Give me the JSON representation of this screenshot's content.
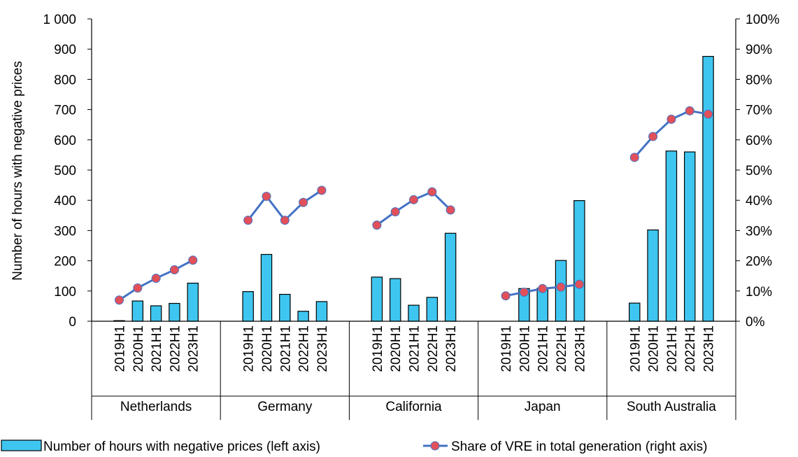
{
  "chart_data": {
    "type": "bar+line",
    "title": "",
    "groups": [
      "Netherlands",
      "Germany",
      "California",
      "Japan",
      "South Australia"
    ],
    "periods": [
      "2019H1",
      "2020H1",
      "2021H1",
      "2022H1",
      "2023H1"
    ],
    "ylabel_left": "Number of hours with negative prices",
    "ylim_left": [
      0,
      1000
    ],
    "yticks_left": [
      "0",
      "100",
      "200",
      "300",
      "400",
      "500",
      "600",
      "700",
      "800",
      "900",
      "1 000"
    ],
    "ylim_right": [
      0,
      100
    ],
    "yticks_right": [
      "0%",
      "10%",
      "20%",
      "30%",
      "40%",
      "50%",
      "60%",
      "70%",
      "80%",
      "90%",
      "100%"
    ],
    "grid": false,
    "legend_position": "bottom",
    "series": [
      {
        "name": "Number of hours with negative prices (left axis)",
        "kind": "bar",
        "axis": "left",
        "color": "#3EC6F0",
        "values": [
          [
            2,
            67,
            51,
            59,
            126
          ],
          [
            98,
            221,
            89,
            33,
            65
          ],
          [
            146,
            141,
            53,
            79,
            291
          ],
          [
            null,
            108,
            109,
            201,
            399
          ],
          [
            60,
            302,
            563,
            560,
            876
          ]
        ]
      },
      {
        "name": "Share of VRE in total generation (right axis)",
        "kind": "line",
        "axis": "right",
        "color": "#4472C4",
        "marker_color": "#E2505A",
        "values": [
          [
            7,
            11,
            14.2,
            17,
            20.2
          ],
          [
            33.4,
            41.3,
            33.4,
            39.3,
            43.3
          ],
          [
            31.8,
            36.2,
            40.2,
            42.8,
            36.8
          ],
          [
            8.4,
            9.6,
            10.8,
            11.3,
            12.2
          ],
          [
            54.2,
            61.1,
            66.8,
            69.6,
            68.5
          ]
        ]
      }
    ]
  }
}
